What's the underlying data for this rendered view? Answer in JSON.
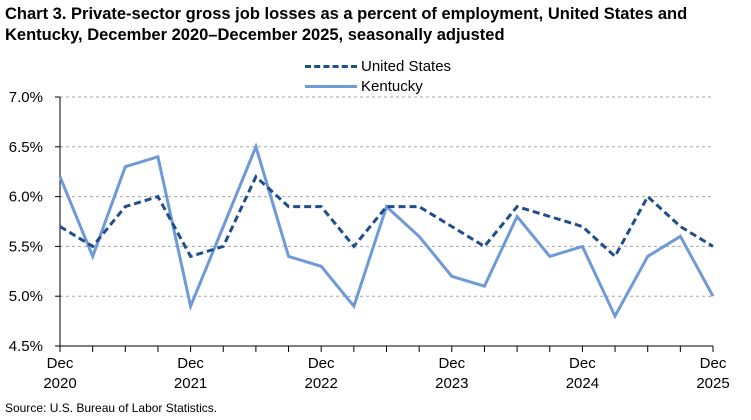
{
  "title": "Chart 3. Private-sector gross job losses as a percent of employment, United States and Kentucky, December 2020–December 2025, seasonally adjusted",
  "source": "Source: U.S. Bureau of Labor Statistics.",
  "colors": {
    "united_states": "#1f4e8c",
    "kentucky": "#6f9ad8",
    "grid": "#a6a6a6",
    "axis": "#000000"
  },
  "chart_data": {
    "type": "line",
    "title": "Chart 3. Private-sector gross job losses as a percent of employment, United States and Kentucky, December 2020–December 2025, seasonally adjusted",
    "xlabel": "",
    "ylabel": "",
    "x": [
      "Dec 2020",
      "Mar 2021",
      "Jun 2021",
      "Sep 2021",
      "Dec 2021",
      "Mar 2022",
      "Jun 2022",
      "Sep 2022",
      "Dec 2022",
      "Mar 2023",
      "Jun 2023",
      "Sep 2023",
      "Dec 2023",
      "Mar 2024",
      "Jun 2024",
      "Sep 2024",
      "Dec 2024",
      "Mar 2025",
      "Jun 2025",
      "Sep 2025",
      "Dec 2025"
    ],
    "x_tick_labels": [
      {
        "month": "Dec",
        "year": "2020",
        "index": 0
      },
      {
        "month": "Dec",
        "year": "2021",
        "index": 4
      },
      {
        "month": "Dec",
        "year": "2022",
        "index": 8
      },
      {
        "month": "Dec",
        "year": "2023",
        "index": 12
      },
      {
        "month": "Dec",
        "year": "2024",
        "index": 16
      },
      {
        "month": "Dec",
        "year": "2025",
        "index": 20
      }
    ],
    "y_tick_labels": [
      "7.0%",
      "6.5%",
      "6.0%",
      "5.5%",
      "5.0%",
      "4.5%"
    ],
    "y_ticks": [
      7.0,
      6.5,
      6.0,
      5.5,
      5.0,
      4.5
    ],
    "ylim": [
      4.5,
      7.0
    ],
    "grid": true,
    "legend_position": "top-center",
    "series": [
      {
        "name": "United States",
        "style": "dashed",
        "values": [
          5.7,
          5.5,
          5.9,
          6.0,
          5.4,
          5.5,
          6.2,
          5.9,
          5.9,
          5.5,
          5.9,
          5.9,
          5.7,
          5.5,
          5.9,
          5.8,
          5.7,
          5.4,
          6.0,
          5.7,
          5.5
        ]
      },
      {
        "name": "Kentucky",
        "style": "solid",
        "values": [
          6.2,
          5.4,
          6.3,
          6.4,
          4.9,
          5.7,
          6.5,
          5.4,
          5.3,
          4.9,
          5.9,
          5.6,
          5.2,
          5.1,
          5.8,
          5.4,
          5.5,
          4.8,
          5.4,
          5.6,
          5.0
        ]
      }
    ]
  }
}
